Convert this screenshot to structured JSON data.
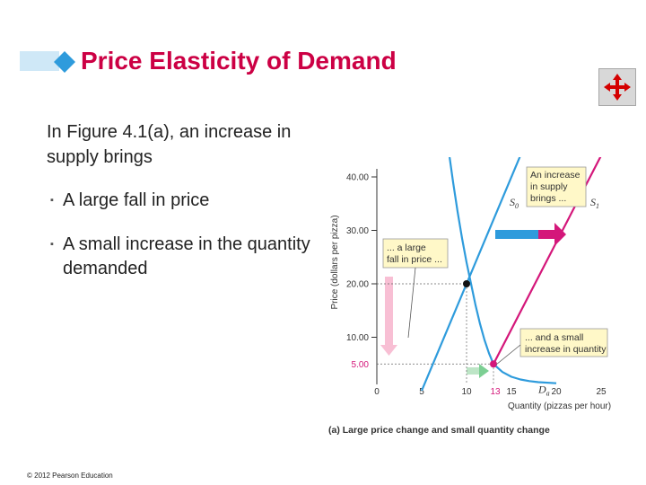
{
  "slide": {
    "title": "Price Elasticity of Demand",
    "intro": "In Figure 4.1(a), an increase in supply brings",
    "bullets": [
      "A large fall in price",
      "A small increase in the quantity demanded"
    ],
    "copyright": "© 2012 Pearson Education",
    "nav_icon": "move-arrows-icon",
    "colors": {
      "title": "#cc0044",
      "supply": "#2e9bdc",
      "supply_new": "#d4177a",
      "demand": "#2e9bdc"
    }
  },
  "chart_data": {
    "type": "line",
    "xlabel": "Quantity (pizzas per hour)",
    "ylabel": "Price (dollars per pizza)",
    "caption": "(a) Large price change and small quantity change",
    "xlim": [
      0,
      25
    ],
    "ylim": [
      0,
      40
    ],
    "x_ticks": [
      "0",
      "5",
      "10",
      "15",
      "20",
      "25"
    ],
    "y_ticks": [
      "10.00",
      "20.00",
      "30.00",
      "40.00"
    ],
    "highlight_x": "13",
    "highlight_y": "5.00",
    "series": [
      {
        "name": "S0",
        "label_main": "S",
        "label_sub": "0",
        "x": [
          5,
          16
        ],
        "y": [
          0,
          44
        ]
      },
      {
        "name": "S1",
        "label_main": "S",
        "label_sub": "1",
        "x": [
          13,
          25
        ],
        "y": [
          5,
          44
        ]
      },
      {
        "name": "Da",
        "label_main": "D",
        "label_sub": "a",
        "x": [
          8,
          8.5,
          9,
          9.5,
          10,
          10.5,
          11,
          11.5,
          12,
          12.5,
          13,
          14,
          15,
          16,
          17,
          18,
          20
        ],
        "y": [
          45,
          39,
          33.5,
          28.5,
          24,
          20,
          16,
          12.5,
          9.5,
          7,
          5,
          3.5,
          2.6,
          2.1,
          1.8,
          1.6,
          1.4
        ]
      }
    ],
    "points": [
      {
        "x": 10,
        "y": 20,
        "color": "#111111"
      },
      {
        "x": 13,
        "y": 5,
        "color": "#d4177a"
      }
    ],
    "annotations": [
      {
        "id": "shift",
        "text": [
          "An increase",
          "in supply",
          "brings ..."
        ]
      },
      {
        "id": "price",
        "text": [
          "... a large",
          "fall in price ..."
        ]
      },
      {
        "id": "quantity",
        "text": [
          "... and a small",
          "increase in quantity"
        ]
      }
    ]
  }
}
